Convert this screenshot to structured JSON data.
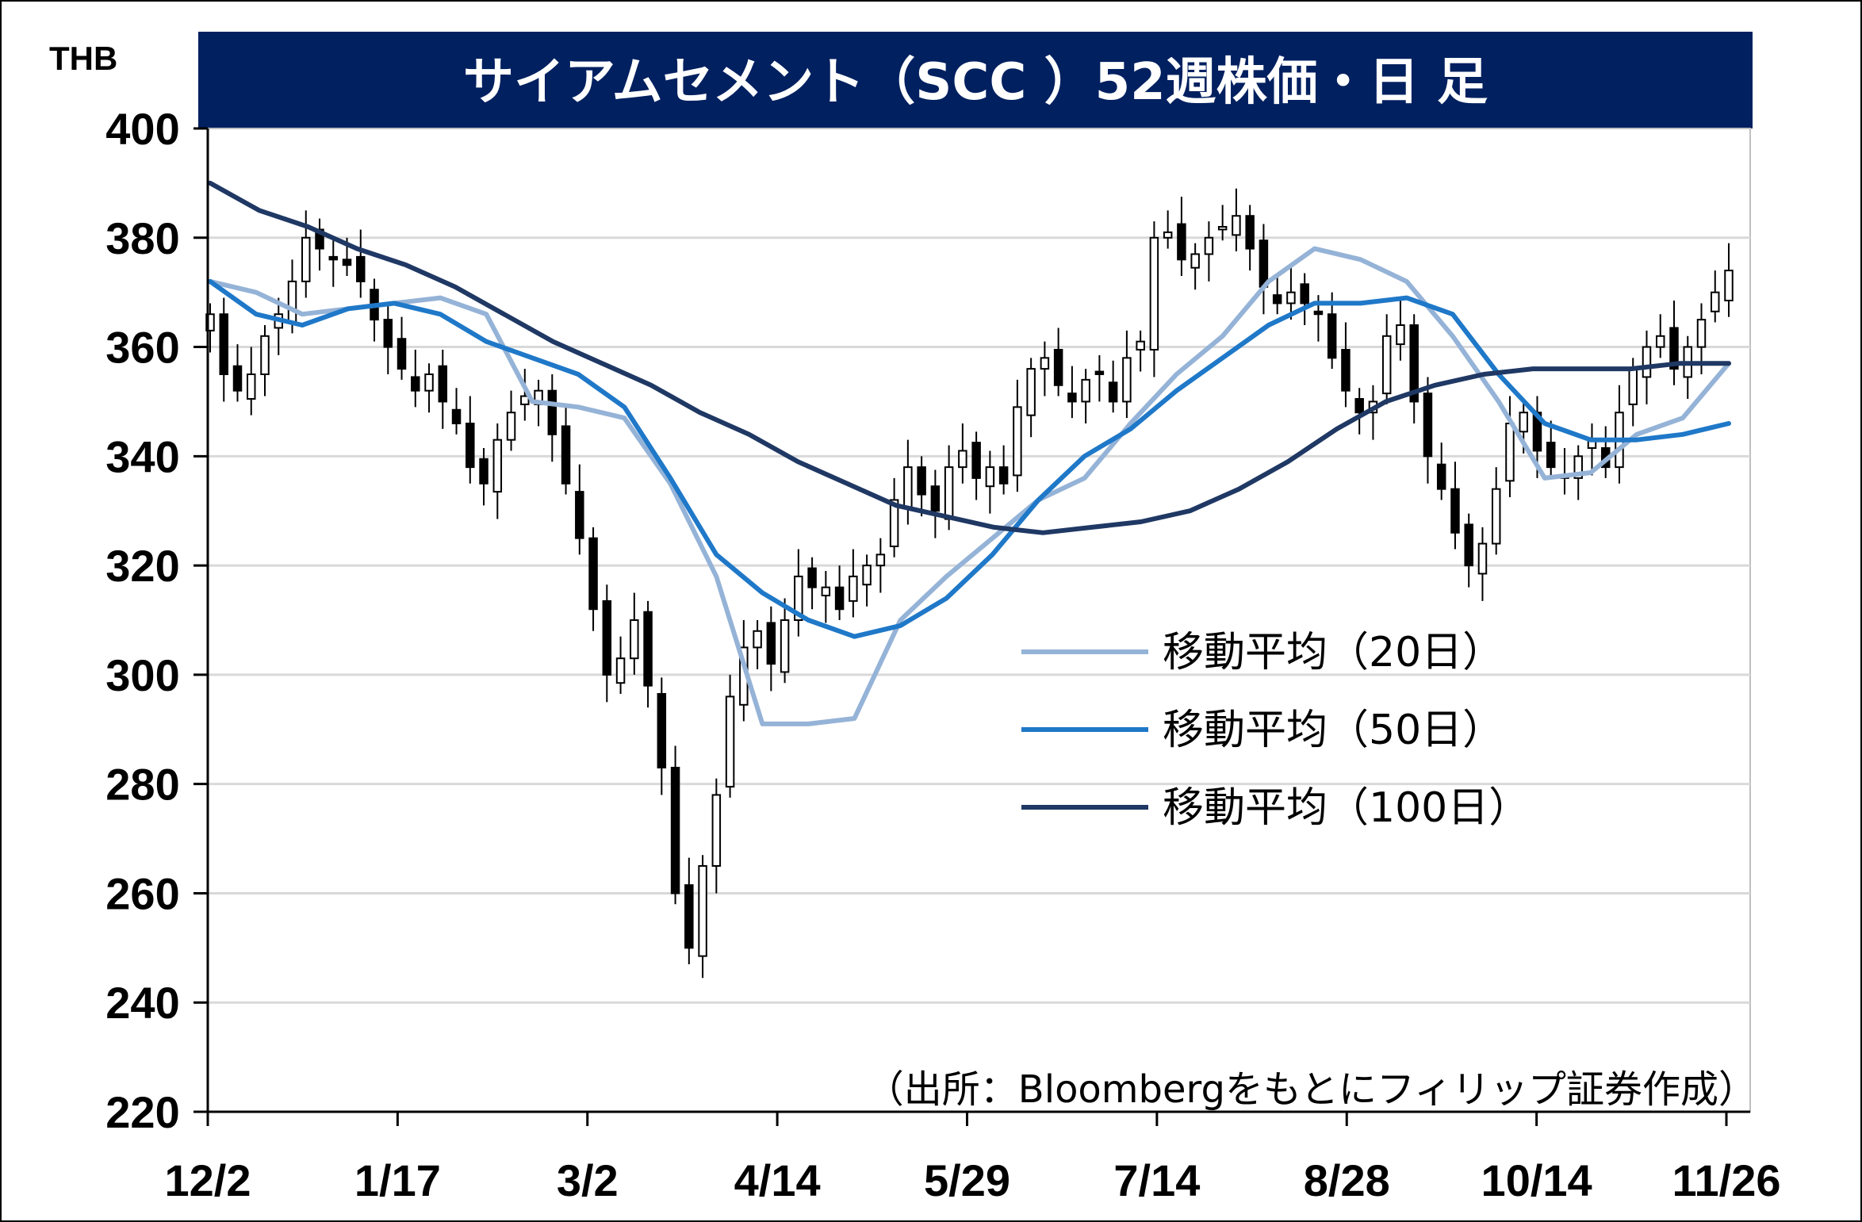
{
  "chart_data": {
    "type": "line",
    "title": "サイアムセメント（SCC ）52週株価・日 足",
    "ylabel": "THB",
    "ylim": [
      220,
      400
    ],
    "yticks": [
      "400",
      "380",
      "360",
      "340",
      "320",
      "300",
      "280",
      "260",
      "240",
      "220"
    ],
    "xticks": [
      "12/2",
      "1/17",
      "3/2",
      "4/14",
      "5/29",
      "7/14",
      "8/28",
      "10/14",
      "11/26"
    ],
    "grid": true,
    "legend_position": "right-center",
    "source": "（出所：Bloombergをもとにフィリップ証券作成）",
    "series": [
      {
        "name": "移動平均（20日）",
        "color": "#95b3d7",
        "values": [
          372,
          370,
          366,
          367,
          368,
          369,
          366,
          350,
          349,
          347,
          335,
          318,
          291,
          291,
          292,
          310,
          318,
          325,
          332,
          336,
          346,
          355,
          362,
          372,
          378,
          376,
          372,
          362,
          350,
          336,
          337,
          344,
          347,
          357
        ]
      },
      {
        "name": "移動平均（50日）",
        "color": "#1f78c8",
        "values": [
          372,
          366,
          364,
          367,
          368,
          366,
          361,
          358,
          355,
          349,
          336,
          322,
          315,
          310,
          307,
          309,
          314,
          322,
          332,
          340,
          345,
          352,
          358,
          364,
          368,
          368,
          369,
          366,
          355,
          346,
          343,
          343,
          344,
          346
        ]
      },
      {
        "name": "移動平均（100日）",
        "color": "#1f3864",
        "values": [
          390,
          385,
          382,
          378,
          375,
          371,
          366,
          361,
          357,
          353,
          348,
          344,
          339,
          335,
          331,
          329,
          327,
          326,
          327,
          328,
          330,
          334,
          339,
          345,
          350,
          353,
          355,
          356,
          356,
          356,
          357,
          357
        ]
      }
    ],
    "candles": {
      "color_up": "#ffffff",
      "color_down": "#000000",
      "daily_close": [
        366,
        355,
        352,
        355,
        362,
        366,
        372,
        380,
        378,
        376,
        375,
        372,
        365,
        360,
        356,
        352,
        355,
        350,
        346,
        338,
        335,
        343,
        348,
        351,
        352,
        344,
        335,
        325,
        312,
        300,
        303,
        310,
        298,
        283,
        260,
        250,
        265,
        278,
        296,
        305,
        308,
        302,
        310,
        318,
        316,
        316,
        312,
        318,
        320,
        322,
        332,
        338,
        333,
        330,
        338,
        341,
        336,
        338,
        335,
        349,
        356,
        358,
        353,
        350,
        354,
        355,
        350,
        358,
        361,
        380,
        381,
        376,
        377,
        380,
        382,
        384,
        378,
        371,
        368,
        370,
        368,
        366,
        358,
        352,
        348,
        350,
        362,
        364,
        350,
        340,
        334,
        326,
        320,
        324,
        334,
        346,
        348,
        341,
        338,
        336,
        340,
        343,
        338,
        348,
        356,
        360,
        362,
        356,
        360,
        365,
        370,
        374
      ]
    }
  },
  "legend": {
    "items": [
      {
        "label": "移動平均（20日）",
        "color": "#95b3d7"
      },
      {
        "label": "移動平均（50日）",
        "color": "#1f78c8"
      },
      {
        "label": "移動平均（100日）",
        "color": "#1f3864"
      }
    ]
  },
  "colors": {
    "title_bg": "#002060",
    "grid": "#d9d9d9"
  }
}
